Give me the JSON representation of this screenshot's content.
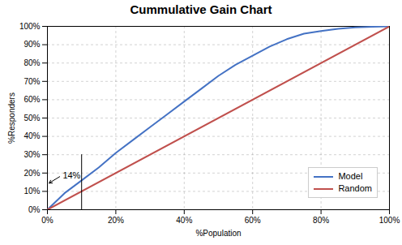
{
  "chart_data": {
    "type": "line",
    "title": "Cummulative Gain Chart",
    "xlabel": "%Population",
    "ylabel": "%Responders",
    "series": [
      {
        "name": "Model",
        "color": "#4472C4",
        "x": [
          0.0,
          0.05,
          0.1,
          0.15,
          0.2,
          0.25,
          0.3,
          0.35,
          0.4,
          0.45,
          0.5,
          0.55,
          0.6,
          0.65,
          0.7,
          0.75,
          0.8,
          0.85,
          0.9,
          0.95,
          1.0
        ],
        "values": [
          0.0,
          0.09,
          0.16,
          0.23,
          0.31,
          0.38,
          0.45,
          0.52,
          0.59,
          0.66,
          0.73,
          0.79,
          0.84,
          0.89,
          0.93,
          0.96,
          0.975,
          0.987,
          0.994,
          0.998,
          1.0
        ]
      },
      {
        "name": "Random",
        "color": "#C0504D",
        "x": [
          0.0,
          1.0
        ],
        "values": [
          0.0,
          1.0
        ]
      }
    ],
    "xlim": [
      0,
      1
    ],
    "ylim": [
      0,
      1
    ],
    "xticks": [
      {
        "value": 0,
        "label": "0%"
      },
      {
        "value": 0.2,
        "label": "20%"
      },
      {
        "value": 0.4,
        "label": "40%"
      },
      {
        "value": 0.6,
        "label": "60%"
      },
      {
        "value": 0.8,
        "label": "80%"
      },
      {
        "value": 1.0,
        "label": "100%"
      }
    ],
    "yticks": [
      {
        "value": 0,
        "label": "0%"
      },
      {
        "value": 0.1,
        "label": "10%"
      },
      {
        "value": 0.2,
        "label": "20%"
      },
      {
        "value": 0.3,
        "label": "30%"
      },
      {
        "value": 0.4,
        "label": "40%"
      },
      {
        "value": 0.5,
        "label": "50%"
      },
      {
        "value": 0.6,
        "label": "60%"
      },
      {
        "value": 0.7,
        "label": "70%"
      },
      {
        "value": 0.8,
        "label": "80%"
      },
      {
        "value": 0.9,
        "label": "90%"
      },
      {
        "value": 1.0,
        "label": "100%"
      }
    ],
    "vlines": [
      {
        "x": 0.1,
        "ymin": 0.0,
        "ymax": 0.3
      }
    ],
    "annotations": [
      {
        "text": "14%",
        "x": 0.04,
        "y": 0.185,
        "arrow_to": [
          0.005,
          0.145
        ]
      }
    ],
    "grid": true,
    "legend": "lower right"
  }
}
